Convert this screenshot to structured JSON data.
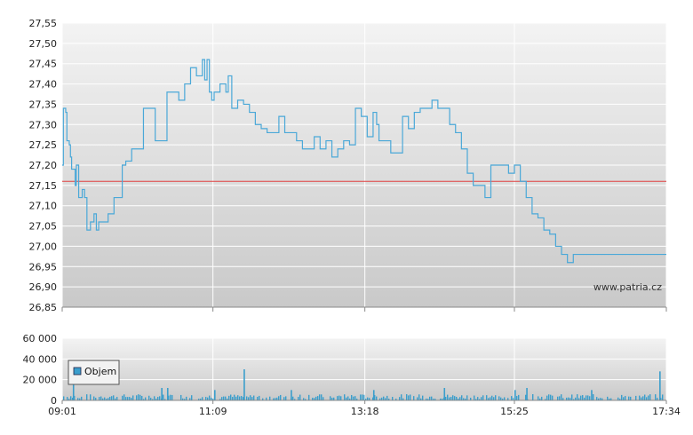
{
  "watermark": "www.patria.cz",
  "colors": {
    "price_line": "#4aa8d8",
    "reference_line": "#e04040",
    "volume_bar": "#3a9ecc",
    "grid": "#ffffff"
  },
  "chart_data": [
    {
      "type": "line",
      "name": "price",
      "ylim": [
        26.85,
        27.55
      ],
      "y_ticks": [
        "27,55",
        "27,50",
        "27,45",
        "27,40",
        "27,35",
        "27,30",
        "27,25",
        "27,20",
        "27,15",
        "27,10",
        "27,05",
        "27,00",
        "26,95",
        "26,90",
        "26,85"
      ],
      "x_ticks": [
        "09:01",
        "11:09",
        "13:18",
        "15:25",
        "17:34"
      ],
      "reference_value": 27.16,
      "x_range": [
        "09:01",
        "17:34"
      ],
      "x": [
        "09:01",
        "09:02",
        "09:04",
        "09:05",
        "09:07",
        "09:08",
        "09:09",
        "09:12",
        "09:13",
        "09:15",
        "09:18",
        "09:20",
        "09:22",
        "09:25",
        "09:28",
        "09:30",
        "09:32",
        "09:35",
        "09:40",
        "09:45",
        "09:52",
        "09:55",
        "10:00",
        "10:05",
        "10:10",
        "10:20",
        "10:30",
        "10:40",
        "10:45",
        "10:50",
        "10:55",
        "11:00",
        "11:02",
        "11:04",
        "11:06",
        "11:08",
        "11:10",
        "11:15",
        "11:20",
        "11:22",
        "11:25",
        "11:30",
        "11:35",
        "11:40",
        "11:45",
        "11:50",
        "11:55",
        "12:00",
        "12:05",
        "12:10",
        "12:15",
        "12:20",
        "12:25",
        "12:30",
        "12:35",
        "12:40",
        "12:45",
        "12:50",
        "12:55",
        "13:00",
        "13:05",
        "13:10",
        "13:15",
        "13:20",
        "13:25",
        "13:28",
        "13:30",
        "13:40",
        "13:50",
        "13:55",
        "14:00",
        "14:05",
        "14:10",
        "14:15",
        "14:20",
        "14:25",
        "14:30",
        "14:35",
        "14:40",
        "14:45",
        "14:50",
        "14:55",
        "15:00",
        "15:05",
        "15:10",
        "15:15",
        "15:20",
        "15:25",
        "15:30",
        "15:35",
        "15:40",
        "15:45",
        "15:50",
        "15:55",
        "16:00",
        "16:05",
        "16:10",
        "16:15",
        "16:20",
        "16:25",
        "16:30",
        "16:35",
        "16:40",
        "16:45",
        "16:50",
        "16:55",
        "17:00",
        "17:05",
        "17:10",
        "17:15",
        "17:20",
        "17:25",
        "17:30",
        "17:34"
      ],
      "values": [
        27.2,
        27.34,
        27.33,
        27.26,
        27.25,
        27.22,
        27.19,
        27.15,
        27.2,
        27.12,
        27.14,
        27.12,
        27.04,
        27.06,
        27.08,
        27.04,
        27.06,
        27.06,
        27.08,
        27.12,
        27.2,
        27.21,
        27.24,
        27.24,
        27.34,
        27.26,
        27.38,
        27.36,
        27.4,
        27.44,
        27.42,
        27.46,
        27.41,
        27.46,
        27.38,
        27.36,
        27.38,
        27.4,
        27.38,
        27.42,
        27.34,
        27.36,
        27.35,
        27.33,
        27.3,
        27.29,
        27.28,
        27.28,
        27.32,
        27.28,
        27.28,
        27.26,
        27.24,
        27.24,
        27.27,
        27.24,
        27.26,
        27.22,
        27.24,
        27.26,
        27.25,
        27.34,
        27.32,
        27.27,
        27.33,
        27.3,
        27.26,
        27.23,
        27.32,
        27.29,
        27.33,
        27.34,
        27.34,
        27.36,
        27.34,
        27.34,
        27.3,
        27.28,
        27.24,
        27.18,
        27.15,
        27.15,
        27.12,
        27.2,
        27.2,
        27.2,
        27.18,
        27.2,
        27.16,
        27.12,
        27.08,
        27.07,
        27.04,
        27.03,
        27.0,
        26.98,
        26.96,
        26.98,
        26.98,
        26.98,
        26.98,
        26.98,
        26.98,
        26.98,
        26.98,
        26.98,
        26.98,
        26.98,
        26.98,
        26.98,
        26.98,
        26.98,
        26.98,
        26.98
      ]
    },
    {
      "type": "bar",
      "name": "volume",
      "legend": "Objem",
      "ylim": [
        0,
        60000
      ],
      "y_ticks": [
        "60 000",
        "40 000",
        "20 000",
        "0"
      ],
      "x_ticks": [
        "09:01",
        "11:09",
        "13:18",
        "15:25",
        "17:34"
      ],
      "spikes": [
        {
          "x": "09:10",
          "value": 22000
        },
        {
          "x": "10:25",
          "value": 12000
        },
        {
          "x": "10:30",
          "value": 12000
        },
        {
          "x": "11:10",
          "value": 10000
        },
        {
          "x": "11:35",
          "value": 30000
        },
        {
          "x": "12:15",
          "value": 10000
        },
        {
          "x": "13:25",
          "value": 10000
        },
        {
          "x": "14:25",
          "value": 12000
        },
        {
          "x": "15:25",
          "value": 10000
        },
        {
          "x": "15:35",
          "value": 12000
        },
        {
          "x": "16:30",
          "value": 10000
        },
        {
          "x": "17:28",
          "value": 28000
        }
      ],
      "baseline_level": 4000
    }
  ]
}
